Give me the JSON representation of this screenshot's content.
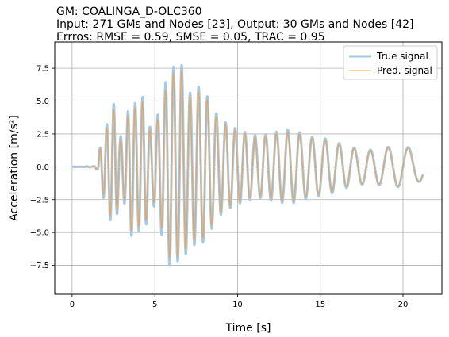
{
  "chart_data": {
    "type": "line",
    "title_lines": [
      "GM: COALINGA_D-OLC360",
      "Input: 271 GMs and Nodes [23], Output: 30 GMs and Nodes [42]",
      "Errros: RMSE = 0.59, SMSE = 0.05, TRAC = 0.95"
    ],
    "xlabel": "Time [s]",
    "ylabel": "Acceleration [m/s²]",
    "xlim": [
      -1.05,
      22.35
    ],
    "ylim": [
      -9.7,
      9.5
    ],
    "xticks": [
      0,
      5,
      10,
      15,
      20
    ],
    "xtick_labels": [
      "0",
      "5",
      "10",
      "15",
      "20"
    ],
    "yticks": [
      -7.5,
      -5.0,
      -2.5,
      0.0,
      2.5,
      5.0,
      7.5
    ],
    "ytick_labels": [
      "−7.5",
      "−5.0",
      "−2.5",
      "0.0",
      "2.5",
      "5.0",
      "7.5"
    ],
    "grid": true,
    "legend_position": "top-right",
    "signal_duration": 21.2,
    "series": [
      {
        "name": "True signal",
        "color": "#a6c8e0",
        "peaks": [
          [
            0.0,
            0.0
          ],
          [
            1.0,
            0.1
          ],
          [
            1.5,
            0.6
          ],
          [
            1.9,
            2.9
          ],
          [
            2.3,
            -5.2
          ],
          [
            2.55,
            6.5
          ],
          [
            2.9,
            3.2
          ],
          [
            3.1,
            -3.4
          ],
          [
            3.35,
            5.8
          ],
          [
            3.55,
            -7.6
          ],
          [
            3.9,
            6.6
          ],
          [
            4.3,
            7.3
          ],
          [
            4.8,
            3.1
          ],
          [
            5.2,
            -4.8
          ],
          [
            5.6,
            6.9
          ],
          [
            6.0,
            -8.5
          ],
          [
            6.3,
            -7.2
          ],
          [
            6.6,
            7.9
          ],
          [
            7.1,
            5.6
          ],
          [
            7.6,
            -6.3
          ],
          [
            8.2,
            -5.8
          ],
          [
            8.8,
            4.6
          ],
          [
            9.5,
            -4.2
          ],
          [
            10.3,
            3.9
          ],
          [
            11.2,
            -3.2
          ],
          [
            12.2,
            3.1
          ],
          [
            13.2,
            -2.9
          ],
          [
            14.4,
            2.3
          ],
          [
            15.6,
            -2.4
          ],
          [
            16.8,
            2.1
          ],
          [
            18.0,
            -1.8
          ],
          [
            19.2,
            1.8
          ],
          [
            20.4,
            -1.5
          ],
          [
            21.2,
            -1.0
          ]
        ]
      },
      {
        "name": "Pred. signal",
        "color": "#f0a050",
        "peaks": [
          [
            0.0,
            0.0
          ],
          [
            1.0,
            0.1
          ],
          [
            1.5,
            0.7
          ],
          [
            1.9,
            2.6
          ],
          [
            2.3,
            -4.7
          ],
          [
            2.55,
            5.9
          ],
          [
            2.9,
            2.8
          ],
          [
            3.1,
            -3.0
          ],
          [
            3.35,
            5.3
          ],
          [
            3.55,
            -7.0
          ],
          [
            3.9,
            6.1
          ],
          [
            4.3,
            6.8
          ],
          [
            4.8,
            2.8
          ],
          [
            5.2,
            -4.4
          ],
          [
            5.6,
            6.2
          ],
          [
            6.0,
            -7.9
          ],
          [
            6.3,
            -6.8
          ],
          [
            6.6,
            7.4
          ],
          [
            7.1,
            5.3
          ],
          [
            7.6,
            -5.9
          ],
          [
            8.2,
            -5.5
          ],
          [
            8.8,
            4.3
          ],
          [
            9.5,
            -4.0
          ],
          [
            10.3,
            3.7
          ],
          [
            11.2,
            -3.0
          ],
          [
            12.2,
            2.9
          ],
          [
            13.2,
            -2.7
          ],
          [
            14.4,
            2.2
          ],
          [
            15.6,
            -2.2
          ],
          [
            16.8,
            2.0
          ],
          [
            18.0,
            -1.7
          ],
          [
            19.2,
            1.7
          ],
          [
            20.4,
            -1.4
          ],
          [
            21.2,
            -1.0
          ]
        ]
      }
    ]
  }
}
